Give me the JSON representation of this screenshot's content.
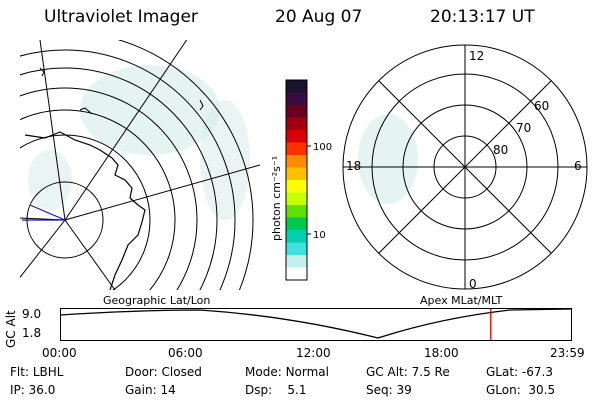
{
  "header": {
    "title": "Ultraviolet Imager",
    "date": "20 Aug 07",
    "time": "20:13:17 UT"
  },
  "colorbar": {
    "unit_label": "photon cm⁻²s⁻¹",
    "ticks": [
      "100",
      "10"
    ],
    "colors": [
      "#1a1230",
      "#3a0a40",
      "#6a0020",
      "#a00010",
      "#d80008",
      "#ff3000",
      "#ff8c00",
      "#ffc000",
      "#ffff00",
      "#c8ff00",
      "#60e000",
      "#00c850",
      "#00d0b0",
      "#40e0e0",
      "#c0f0f0",
      "#ffffff"
    ]
  },
  "right_plot": {
    "mlt_labels": {
      "top": "12",
      "left": "18",
      "right": "6",
      "bottom": "0"
    },
    "lat_labels": [
      "60",
      "70",
      "80"
    ]
  },
  "left_plot": {
    "label": "Geographic Lat/Lon"
  },
  "timeline": {
    "left_title": "Geographic Lat/Lon",
    "right_title": "Apex MLat/MLT",
    "axis_label": "GC Alt",
    "y_ticks": [
      "9.0",
      "1.8"
    ],
    "x_ticks": [
      "00:00",
      "06:00",
      "12:00",
      "18:00",
      "23:59"
    ],
    "current_time_fraction": 0.843
  },
  "status": {
    "row1": [
      {
        "key": "Flt:",
        "val": "LBHL"
      },
      {
        "key": "Door:",
        "val": "Closed"
      },
      {
        "key": "Mode:",
        "val": "Normal"
      },
      {
        "key": "GC Alt:",
        "val": "7.5 Re"
      },
      {
        "key": "GLat:",
        "val": "-67.3"
      }
    ],
    "row2": [
      {
        "key": "IP:",
        "val": "36.0"
      },
      {
        "key": "Gain:",
        "val": "14"
      },
      {
        "key": "Dsp:",
        "val": "5.1"
      },
      {
        "key": "Seq:",
        "val": "39"
      },
      {
        "key": "GLon:",
        "val": "30.5"
      }
    ]
  }
}
